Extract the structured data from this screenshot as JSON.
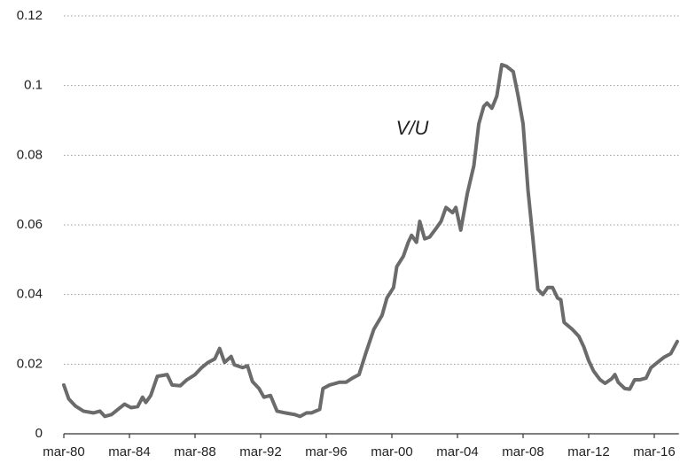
{
  "chart_data": {
    "type": "line",
    "annotation": "V/U",
    "color": "#6b6b6b",
    "grid": true,
    "xlim": [
      1980,
      2017.5
    ],
    "ylim": [
      0,
      0.12
    ],
    "yticks": [
      0,
      0.02,
      0.04,
      0.06,
      0.08,
      0.1,
      0.12
    ],
    "xticks": [
      {
        "value": 1980,
        "label": "mar-80"
      },
      {
        "value": 1984,
        "label": "mar-84"
      },
      {
        "value": 1988,
        "label": "mar-88"
      },
      {
        "value": 1992,
        "label": "mar-92"
      },
      {
        "value": 1996,
        "label": "mar-96"
      },
      {
        "value": 2000,
        "label": "mar-00"
      },
      {
        "value": 2004,
        "label": "mar-04"
      },
      {
        "value": 2008,
        "label": "mar-08"
      },
      {
        "value": 2012,
        "label": "mar-12"
      },
      {
        "value": 2016,
        "label": "mar-16"
      }
    ],
    "x": [
      1980.0,
      1980.3,
      1980.7,
      1981.2,
      1981.8,
      1982.2,
      1982.5,
      1982.9,
      1983.3,
      1983.7,
      1984.1,
      1984.5,
      1984.8,
      1985.0,
      1985.3,
      1985.7,
      1986.3,
      1986.6,
      1987.1,
      1987.5,
      1988.0,
      1988.4,
      1988.8,
      1989.2,
      1989.5,
      1989.8,
      1990.2,
      1990.4,
      1990.9,
      1991.2,
      1991.5,
      1991.9,
      1992.2,
      1992.6,
      1993.0,
      1993.5,
      1994.1,
      1994.4,
      1994.8,
      1995.1,
      1995.6,
      1995.8,
      1996.2,
      1996.8,
      1997.2,
      1997.6,
      1998.0,
      1998.4,
      1998.9,
      1999.4,
      1999.7,
      2000.1,
      2000.3,
      2000.7,
      2001.0,
      2001.2,
      2001.5,
      2001.7,
      2002.0,
      2002.3,
      2002.7,
      2003.0,
      2003.3,
      2003.7,
      2003.9,
      2004.2,
      2004.6,
      2005.0,
      2005.3,
      2005.6,
      2005.8,
      2006.1,
      2006.4,
      2006.7,
      2007.0,
      2007.4,
      2007.7,
      2008.0,
      2008.3,
      2008.6,
      2008.9,
      2009.2,
      2009.5,
      2009.8,
      2010.1,
      2010.3,
      2010.5,
      2011.0,
      2011.4,
      2011.7,
      2012.0,
      2012.3,
      2012.7,
      2013.0,
      2013.4,
      2013.6,
      2013.8,
      2014.2,
      2014.5,
      2014.8,
      2015.1,
      2015.5,
      2015.8,
      2016.2,
      2016.6,
      2017.0,
      2017.4
    ],
    "values": [
      0.014,
      0.01,
      0.008,
      0.0065,
      0.006,
      0.0065,
      0.005,
      0.0055,
      0.007,
      0.0085,
      0.0075,
      0.0078,
      0.0105,
      0.009,
      0.011,
      0.0165,
      0.017,
      0.014,
      0.0138,
      0.0155,
      0.017,
      0.019,
      0.0205,
      0.0215,
      0.0245,
      0.0205,
      0.0222,
      0.0198,
      0.019,
      0.0195,
      0.015,
      0.013,
      0.0105,
      0.011,
      0.0065,
      0.006,
      0.0055,
      0.005,
      0.006,
      0.006,
      0.007,
      0.013,
      0.014,
      0.0148,
      0.0148,
      0.016,
      0.017,
      0.023,
      0.03,
      0.034,
      0.039,
      0.042,
      0.048,
      0.051,
      0.055,
      0.057,
      0.055,
      0.061,
      0.056,
      0.0565,
      0.059,
      0.061,
      0.065,
      0.0635,
      0.065,
      0.0585,
      0.069,
      0.077,
      0.089,
      0.094,
      0.095,
      0.0935,
      0.097,
      0.106,
      0.1055,
      0.104,
      0.097,
      0.089,
      0.07,
      0.056,
      0.0415,
      0.04,
      0.042,
      0.042,
      0.039,
      0.0385,
      0.032,
      0.03,
      0.028,
      0.025,
      0.021,
      0.018,
      0.0155,
      0.0145,
      0.0158,
      0.017,
      0.0148,
      0.013,
      0.0128,
      0.0155,
      0.0155,
      0.016,
      0.019,
      0.0205,
      0.022,
      0.023,
      0.0265
    ]
  }
}
